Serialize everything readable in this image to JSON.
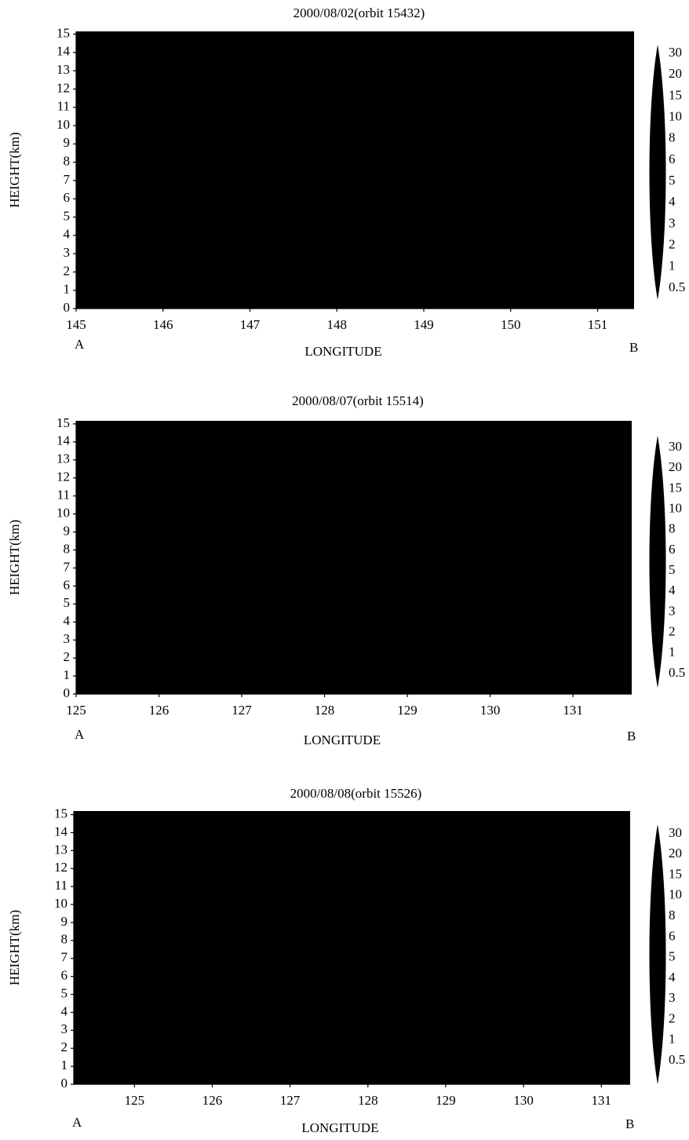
{
  "chart_data": [
    {
      "type": "heatmap",
      "title": "2000/08/02(orbit 15432)",
      "xlabel": "LONGITUDE",
      "ylabel": "HEIGHT(km)",
      "start_label": "A",
      "end_label": "B",
      "color": "#000000",
      "xlim": [
        145,
        151.42
      ],
      "xticks": [
        145,
        146,
        147,
        148,
        149,
        150,
        151
      ],
      "ylim": [
        0,
        15.15
      ],
      "yticks": [
        0,
        1,
        2,
        3,
        4,
        5,
        6,
        7,
        8,
        9,
        10,
        11,
        12,
        13,
        14,
        15
      ],
      "colorbar_ticks": [
        0.5,
        1,
        2,
        3,
        4,
        5,
        6,
        8,
        10,
        15,
        20,
        30
      ]
    },
    {
      "type": "heatmap",
      "title": "2000/08/07(orbit 15514)",
      "xlabel": "LONGITUDE",
      "ylabel": "HEIGHT(km)",
      "start_label": "A",
      "end_label": "B",
      "color": "#000000",
      "xlim": [
        125,
        131.71
      ],
      "xticks": [
        125,
        126,
        127,
        128,
        129,
        130,
        131
      ],
      "ylim": [
        0,
        15.17
      ],
      "yticks": [
        0,
        1,
        2,
        3,
        4,
        5,
        6,
        7,
        8,
        9,
        10,
        11,
        12,
        13,
        14,
        15
      ],
      "colorbar_ticks": [
        0.5,
        1,
        2,
        3,
        4,
        5,
        6,
        8,
        10,
        15,
        20,
        30
      ]
    },
    {
      "type": "heatmap",
      "title": "2000/08/08(orbit 15526)",
      "xlabel": "LONGITUDE",
      "ylabel": "HEIGHT(km)",
      "start_label": "A",
      "end_label": "B",
      "color": "#000000",
      "xlim": [
        124.22,
        131.37
      ],
      "xticks": [
        125,
        126,
        127,
        128,
        129,
        130,
        131
      ],
      "ylim": [
        0,
        15.2
      ],
      "yticks": [
        0,
        1,
        2,
        3,
        4,
        5,
        6,
        7,
        8,
        9,
        10,
        11,
        12,
        13,
        14,
        15
      ],
      "colorbar_ticks": [
        0.5,
        1,
        2,
        3,
        4,
        5,
        6,
        8,
        10,
        15,
        20,
        30
      ]
    }
  ]
}
